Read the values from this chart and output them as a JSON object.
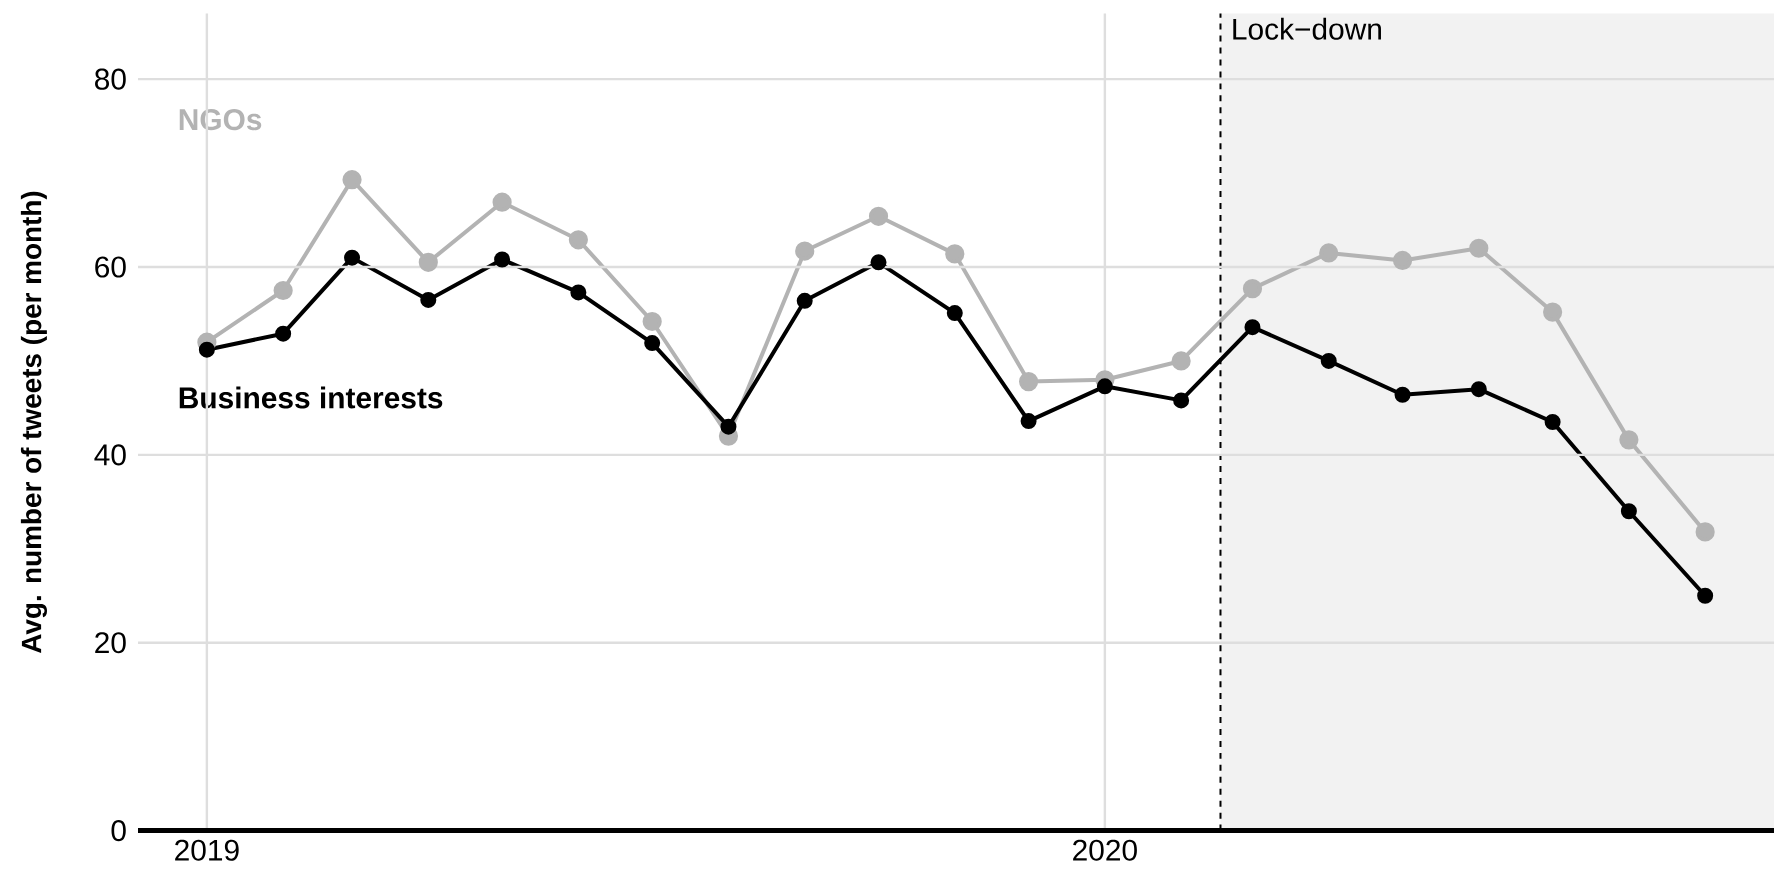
{
  "chart_data": {
    "type": "line",
    "ylabel": "Avg. number of tweets (per month)",
    "x": [
      "2019-01",
      "2019-02",
      "2019-03",
      "2019-04",
      "2019-05",
      "2019-06",
      "2019-07",
      "2019-08",
      "2019-09",
      "2019-10",
      "2019-11",
      "2019-12",
      "2020-01",
      "2020-02",
      "2020-03",
      "2020-04",
      "2020-05",
      "2020-06",
      "2020-07",
      "2020-08",
      "2020-09"
    ],
    "series": [
      {
        "name": "NGOs",
        "color": "#b3b3b3",
        "values": [
          52,
          57.5,
          69.3,
          60.5,
          66.9,
          62.9,
          54.2,
          42,
          61.7,
          65.4,
          61.4,
          47.8,
          48,
          50,
          57.7,
          61.5,
          60.7,
          62,
          55.2,
          41.6,
          31.8
        ]
      },
      {
        "name": "Business interests",
        "color": "#000000",
        "values": [
          51.2,
          52.9,
          61,
          56.5,
          60.8,
          57.3,
          51.9,
          43,
          56.4,
          60.5,
          55.1,
          43.6,
          47.3,
          45.8,
          53.6,
          50,
          46.4,
          47,
          43.5,
          34,
          25
        ]
      }
    ],
    "xlim": [
      "2018-12-04",
      "2020-09-29"
    ],
    "xticks": [
      "2019",
      "2020"
    ],
    "ylim": [
      0,
      87
    ],
    "yticks": [
      0,
      20,
      40,
      60,
      80
    ],
    "grid": true,
    "marker": "circle",
    "line_style": "solid",
    "ref_lines": [
      {
        "axis": "x",
        "value": "2020-02-17",
        "label": "Lock−down",
        "color": "#000000",
        "line_style": "dashed"
      }
    ],
    "bands": [
      {
        "axis": "x",
        "from": "2020-02-17",
        "to": "2020-09-29",
        "color": "#f2f2f2"
      }
    ]
  }
}
